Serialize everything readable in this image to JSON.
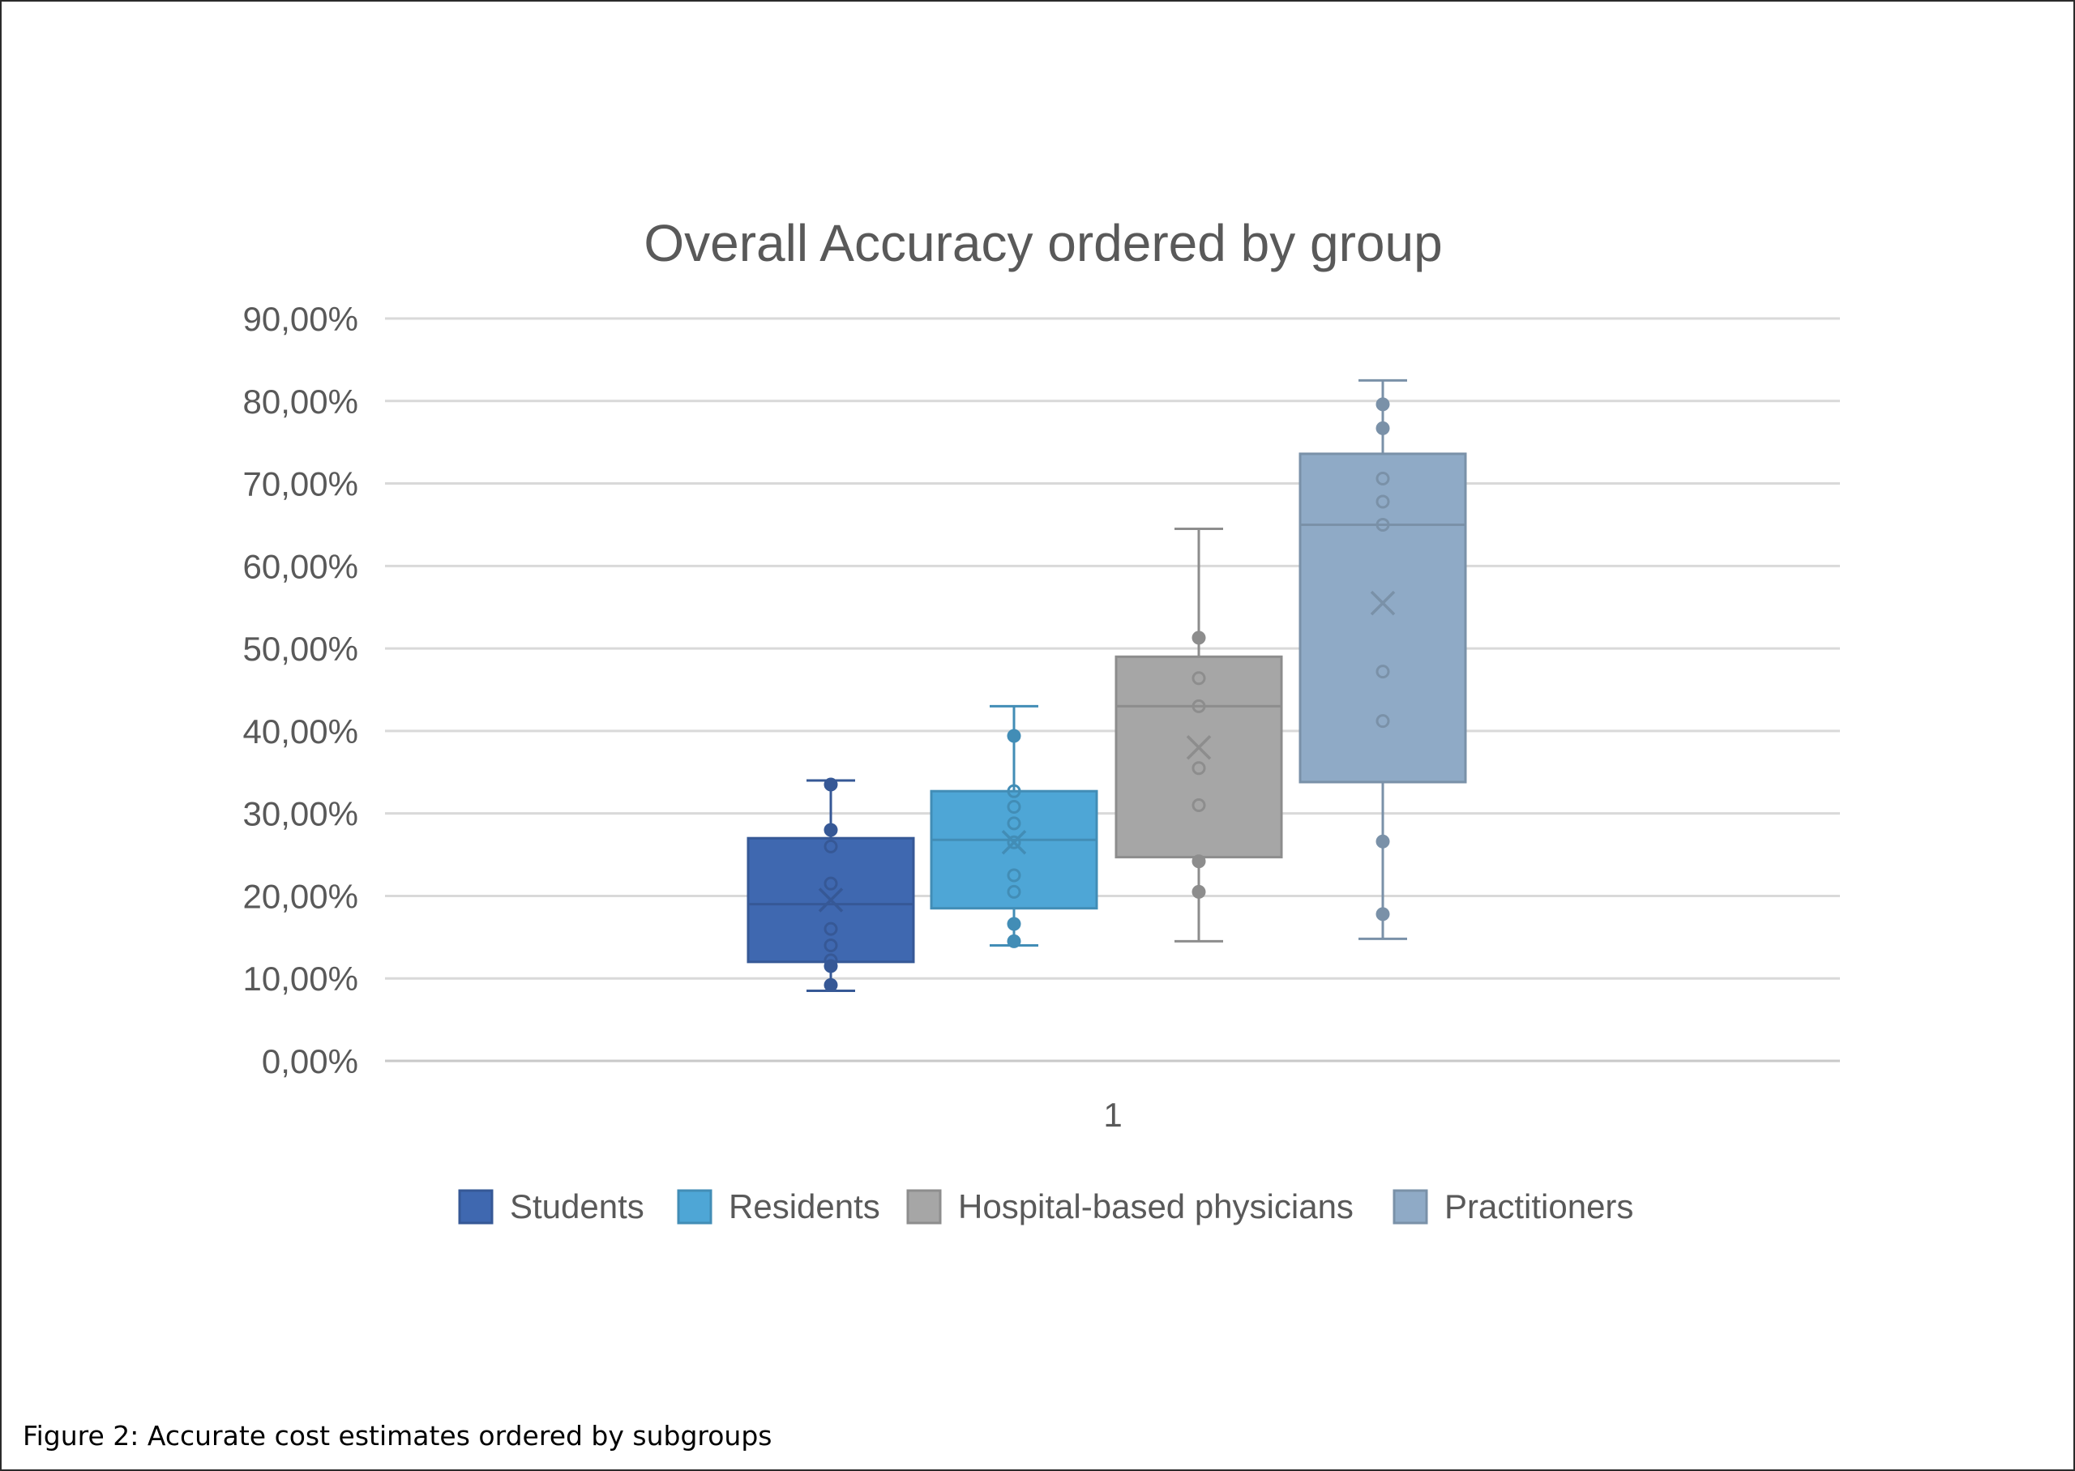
{
  "figure": {
    "caption": "Figure 2: Accurate cost estimates ordered by subgroups"
  },
  "chart_data": {
    "type": "box",
    "title": "Overall Accuracy ordered by group",
    "categories": [
      "1"
    ],
    "ylim": [
      0,
      90
    ],
    "yticks": [
      0,
      10,
      20,
      30,
      40,
      50,
      60,
      70,
      80,
      90
    ],
    "ytick_labels": [
      "0,00%",
      "10,00%",
      "20,00%",
      "30,00%",
      "40,00%",
      "50,00%",
      "60,00%",
      "70,00%",
      "80,00%",
      "90,00%"
    ],
    "grid": true,
    "legend_position": "bottom",
    "series": [
      {
        "name": "Students",
        "color": "#3F68B0",
        "whisker_low": 8.5,
        "q1": 12,
        "median": 19,
        "q3": 27,
        "whisker_high": 34,
        "mean": 19.5,
        "points": [
          9.2,
          11.5,
          12.2,
          14,
          16,
          21.5,
          26,
          28,
          33.5
        ]
      },
      {
        "name": "Residents",
        "color": "#4EA6D6",
        "whisker_low": 14,
        "q1": 18.5,
        "median": 26.8,
        "q3": 32.7,
        "whisker_high": 43,
        "mean": 26.5,
        "points": [
          14.5,
          16.6,
          20.5,
          22.5,
          26.5,
          28.8,
          30.8,
          32.7,
          39.4
        ]
      },
      {
        "name": "Hospital-based physicians",
        "color": "#A6A6A6",
        "whisker_low": 14.5,
        "q1": 24.7,
        "median": 43,
        "q3": 49,
        "whisker_high": 64.5,
        "mean": 38,
        "points": [
          20.5,
          24.2,
          31,
          35.5,
          43,
          46.4,
          51.3
        ]
      },
      {
        "name": "Practitioners",
        "color": "#8FAAC6",
        "whisker_low": 14.8,
        "q1": 33.8,
        "median": 65,
        "q3": 73.6,
        "whisker_high": 82.5,
        "mean": 55.5,
        "points": [
          17.8,
          26.6,
          41.2,
          47.2,
          65,
          67.8,
          70.6,
          76.7,
          79.6
        ]
      }
    ]
  }
}
